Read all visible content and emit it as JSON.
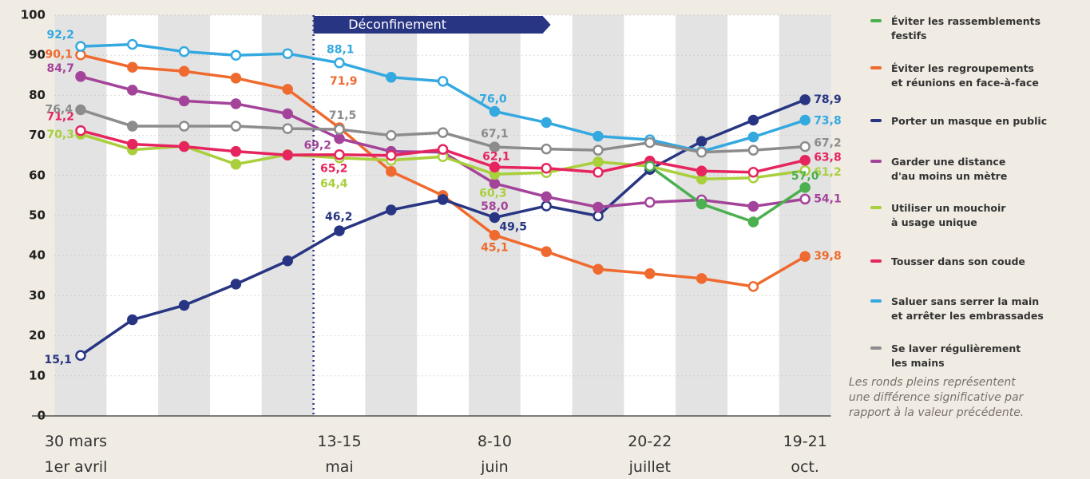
{
  "chart_data": {
    "type": "line",
    "categories": [
      "30 mars\n1er avril",
      null,
      null,
      null,
      null,
      "13-15\nmai",
      null,
      null,
      "8-10\njuin",
      null,
      null,
      "20-22\njuillet",
      null,
      null,
      "19-21\noct."
    ],
    "ylim": [
      0,
      100
    ],
    "yticks": [
      0,
      10,
      20,
      30,
      40,
      50,
      60,
      70,
      80,
      90,
      100
    ],
    "grid": true,
    "annotations": [
      {
        "text": "Déconfinement"
      }
    ],
    "note": "Les ronds pleins représentent\nune différence significative par\nrapport à la valeur précédente.",
    "series": [
      {
        "name": "Éviter les rassemblements\nfestifs",
        "color": "#4caf50",
        "values": [
          null,
          null,
          null,
          null,
          null,
          null,
          null,
          null,
          null,
          null,
          null,
          62.3,
          52.9,
          48.4,
          57.0
        ],
        "value_labels": [
          null,
          null,
          null,
          null,
          null,
          null,
          null,
          null,
          null,
          null,
          null,
          null,
          null,
          null,
          "57,0"
        ],
        "filled_markers": [
          false,
          false,
          false,
          false,
          false,
          false,
          false,
          false,
          false,
          false,
          false,
          false,
          true,
          true,
          true
        ]
      },
      {
        "name": "Éviter les regroupements\net réunions en face-à-face",
        "color": "#ef6a2e",
        "values": [
          90.1,
          87.0,
          86.0,
          84.3,
          81.5,
          71.9,
          61.0,
          55.0,
          45.1,
          41.0,
          36.6,
          35.5,
          34.3,
          32.3,
          39.8
        ],
        "value_labels": [
          "90,1",
          null,
          null,
          null,
          null,
          "71,9",
          null,
          null,
          "45,1",
          null,
          null,
          null,
          null,
          null,
          "39,8"
        ],
        "filled_markers": [
          false,
          true,
          true,
          true,
          true,
          true,
          true,
          true,
          true,
          true,
          true,
          true,
          true,
          false,
          true
        ]
      },
      {
        "name": "Porter un masque en public",
        "color": "#283583",
        "values": [
          15.1,
          24.0,
          27.6,
          32.9,
          38.7,
          46.2,
          51.4,
          54.0,
          49.5,
          52.4,
          49.9,
          61.5,
          68.5,
          73.8,
          78.9
        ],
        "value_labels": [
          "15,1",
          null,
          null,
          null,
          null,
          "46,2",
          null,
          null,
          "49,5",
          null,
          null,
          null,
          null,
          null,
          "78,9"
        ],
        "filled_markers": [
          false,
          true,
          true,
          true,
          true,
          true,
          true,
          true,
          true,
          false,
          false,
          true,
          true,
          true,
          true
        ]
      },
      {
        "name": "Garder une distance\nd'au moins un mètre",
        "color": "#a3449a",
        "values": [
          84.7,
          81.3,
          78.6,
          77.9,
          75.4,
          69.2,
          66.0,
          65.8,
          58.0,
          54.7,
          52.1,
          53.3,
          53.9,
          52.3,
          54.1
        ],
        "value_labels": [
          "84,7",
          null,
          null,
          null,
          null,
          "69,2",
          null,
          null,
          "58,0",
          null,
          null,
          null,
          null,
          null,
          "54,1"
        ],
        "filled_markers": [
          true,
          true,
          true,
          true,
          true,
          true,
          true,
          false,
          true,
          true,
          true,
          false,
          false,
          true,
          false
        ]
      },
      {
        "name": "Utiliser un mouchoir\nà usage unique",
        "color": "#a9cf3c",
        "values": [
          70.3,
          66.4,
          67.3,
          62.8,
          65.2,
          64.4,
          63.8,
          64.7,
          60.3,
          60.7,
          63.4,
          62.3,
          59.1,
          59.4,
          61.2
        ],
        "value_labels": [
          "70,3",
          null,
          null,
          null,
          null,
          "64,4",
          null,
          null,
          "60,3",
          null,
          null,
          null,
          null,
          null,
          "61,2"
        ],
        "filled_markers": [
          true,
          true,
          false,
          true,
          false,
          false,
          false,
          false,
          true,
          false,
          true,
          false,
          true,
          false,
          false
        ]
      },
      {
        "name": "Tousser dans son coude",
        "color": "#e6245e",
        "values": [
          71.2,
          67.8,
          67.2,
          66.0,
          65.1,
          65.2,
          65.0,
          66.5,
          62.1,
          61.8,
          60.8,
          63.6,
          61.1,
          60.8,
          63.8
        ],
        "value_labels": [
          "71,2",
          null,
          null,
          null,
          null,
          "65,2",
          null,
          null,
          "62,1",
          null,
          null,
          null,
          null,
          null,
          "63,8"
        ],
        "filled_markers": [
          false,
          true,
          true,
          true,
          true,
          false,
          false,
          false,
          true,
          false,
          false,
          true,
          true,
          false,
          true
        ]
      },
      {
        "name": "Saluer sans serrer la main\net arrêter les embrassades",
        "color": "#34a9e0",
        "values": [
          92.2,
          92.7,
          90.9,
          90.0,
          90.4,
          88.1,
          84.5,
          83.5,
          76.0,
          73.2,
          69.8,
          68.9,
          66.0,
          69.6,
          73.8
        ],
        "value_labels": [
          "92,2",
          null,
          null,
          null,
          null,
          "88,1",
          null,
          null,
          "76,0",
          null,
          null,
          null,
          null,
          null,
          "73,8"
        ],
        "filled_markers": [
          false,
          false,
          false,
          false,
          false,
          false,
          true,
          false,
          true,
          true,
          true,
          false,
          true,
          true,
          true
        ]
      },
      {
        "name": "Se laver régulièrement\nles mains",
        "color": "#8c8c8c",
        "values": [
          76.4,
          72.3,
          72.3,
          72.3,
          71.7,
          71.5,
          70.0,
          70.7,
          67.1,
          66.6,
          66.3,
          68.2,
          65.8,
          66.3,
          67.2
        ],
        "value_labels": [
          "76,4",
          null,
          null,
          null,
          null,
          "71,5",
          null,
          null,
          "67,1",
          null,
          null,
          null,
          null,
          null,
          "67,2"
        ],
        "filled_markers": [
          true,
          true,
          false,
          false,
          false,
          false,
          false,
          false,
          true,
          false,
          false,
          false,
          false,
          false,
          false
        ]
      }
    ]
  }
}
